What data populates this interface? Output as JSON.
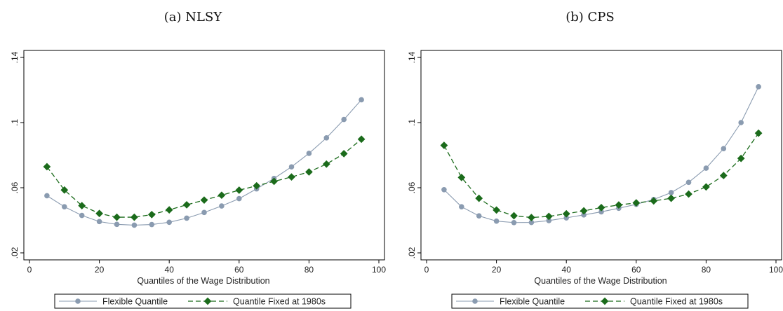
{
  "chart_data": [
    {
      "type": "line",
      "title": "(a) NLSY",
      "xlabel": "Quantiles of the Wage Distribution",
      "ylabel": "",
      "xlim": [
        0,
        100
      ],
      "ylim": [
        0.02,
        0.14
      ],
      "xticks": [
        0,
        20,
        40,
        60,
        80,
        100
      ],
      "xtick_labels": [
        "0",
        "20",
        "40",
        "60",
        "80",
        "100"
      ],
      "yticks": [
        0.02,
        0.06,
        0.1,
        0.14
      ],
      "ytick_labels": [
        ".02",
        ".06",
        ".1",
        ".14"
      ],
      "grid": false,
      "legend_position": "bottom",
      "x": [
        5,
        10,
        15,
        20,
        25,
        30,
        35,
        40,
        45,
        50,
        55,
        60,
        65,
        70,
        75,
        80,
        85,
        90,
        95
      ],
      "series": [
        {
          "name": "Flexible Quantile",
          "color": "#8a9bb0",
          "marker": "circle",
          "dash": "solid",
          "values": [
            0.0551,
            0.0483,
            0.043,
            0.0392,
            0.0375,
            0.037,
            0.0374,
            0.0388,
            0.0413,
            0.0448,
            0.0488,
            0.0533,
            0.0593,
            0.0657,
            0.0728,
            0.0811,
            0.0906,
            0.1019,
            0.114
          ]
        },
        {
          "name": "Quantile Fixed at 1980s",
          "color": "#1b6b1b",
          "marker": "diamond",
          "dash": "dashed",
          "values": [
            0.0729,
            0.0586,
            0.049,
            0.0442,
            0.0419,
            0.0419,
            0.0435,
            0.0464,
            0.0495,
            0.0524,
            0.0554,
            0.0585,
            0.0612,
            0.0639,
            0.0666,
            0.0697,
            0.0745,
            0.0809,
            0.0898
          ]
        }
      ]
    },
    {
      "type": "line",
      "title": "(b) CPS",
      "xlabel": "Quantiles of the Wage Distribution",
      "ylabel": "",
      "xlim": [
        0,
        100
      ],
      "ylim": [
        0.02,
        0.14
      ],
      "xticks": [
        0,
        20,
        40,
        60,
        80,
        100
      ],
      "xtick_labels": [
        "0",
        "20",
        "40",
        "60",
        "80",
        "100"
      ],
      "yticks": [
        0.02,
        0.06,
        0.1,
        0.14
      ],
      "ytick_labels": [
        ".02",
        ".06",
        ".1",
        ".14"
      ],
      "grid": false,
      "legend_position": "bottom",
      "x": [
        5,
        10,
        15,
        20,
        25,
        30,
        35,
        40,
        45,
        50,
        55,
        60,
        65,
        70,
        75,
        80,
        85,
        90,
        95
      ],
      "series": [
        {
          "name": "Flexible Quantile",
          "color": "#8a9bb0",
          "marker": "circle",
          "dash": "solid",
          "values": [
            0.0588,
            0.0483,
            0.0427,
            0.0395,
            0.0386,
            0.0387,
            0.0398,
            0.0415,
            0.0433,
            0.0452,
            0.0474,
            0.0498,
            0.0528,
            0.057,
            0.0633,
            0.072,
            0.084,
            0.1,
            0.122
          ]
        },
        {
          "name": "Quantile Fixed at 1980s",
          "color": "#1b6b1b",
          "marker": "diamond",
          "dash": "dashed",
          "values": [
            0.086,
            0.0663,
            0.0535,
            0.0463,
            0.0428,
            0.0417,
            0.0424,
            0.044,
            0.0458,
            0.0478,
            0.0494,
            0.0507,
            0.0519,
            0.0535,
            0.0561,
            0.0605,
            0.0675,
            0.078,
            0.0935
          ]
        }
      ]
    }
  ]
}
